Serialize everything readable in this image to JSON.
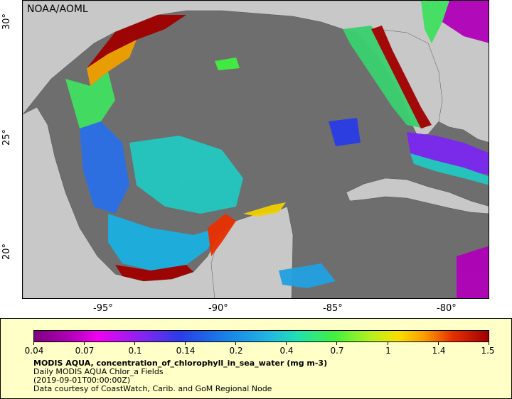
{
  "map": {
    "credit": "NOAA/AOML",
    "lat_ticks": [
      "30°",
      "25°",
      "20°"
    ],
    "lon_ticks": [
      "-95°",
      "-90°",
      "-85°",
      "-80°"
    ]
  },
  "legend": {
    "colorbar_ticks": [
      "0.04",
      "0.07",
      "0.1",
      "0.14",
      "0.2",
      "0.4",
      "0.7",
      "1",
      "1.4",
      "1.5"
    ],
    "variable_title": "MODIS AQUA, concentration_of_chlorophyll_in_sea_water (mg m-3)",
    "dataset": "Daily MODIS AQUA Chlor_a Fields",
    "time": "(2019-09-01T00:00:00Z)",
    "source": "Data courtesy of CoastWatch, Carib. and GoM Regional Node"
  },
  "colors": {
    "land": "#c8c8c8",
    "water_nodata": "#6e6e6e",
    "legend_background": "#ffffc8"
  }
}
